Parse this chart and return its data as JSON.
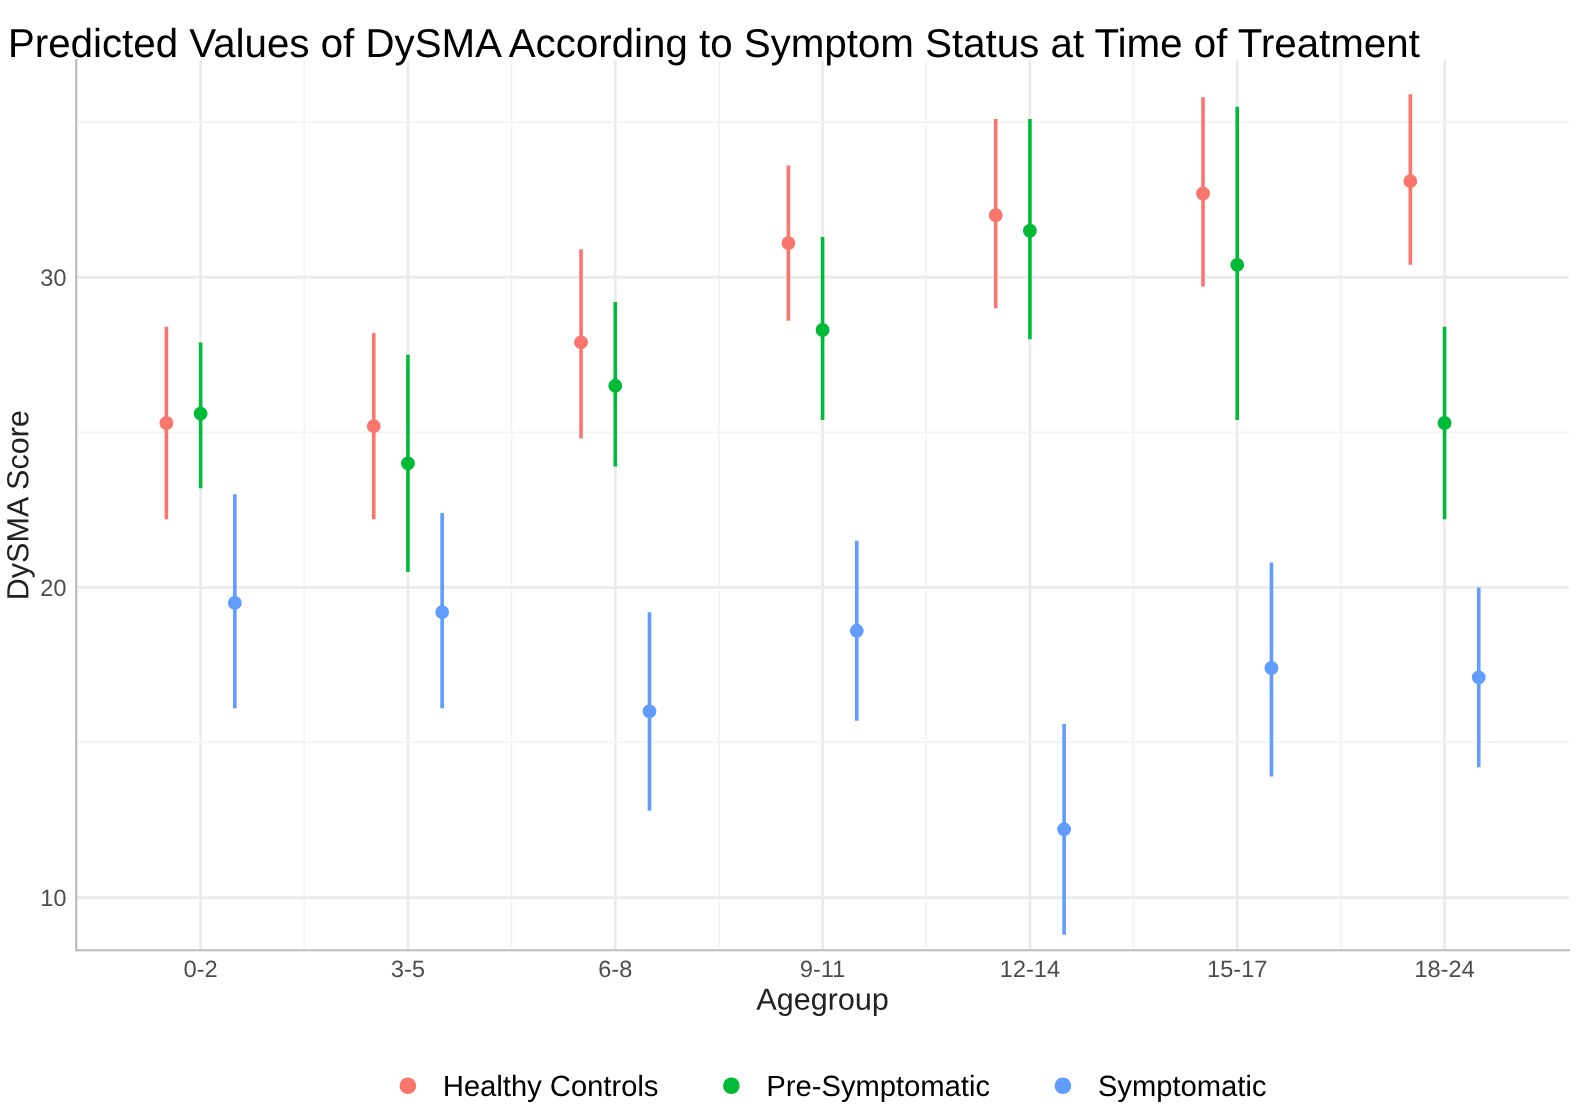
{
  "chart_data": {
    "type": "scatter",
    "title": "Predicted Values of DySMA According to Symptom Status at Time of Treatment",
    "xlabel": "Agegroup",
    "ylabel": "DySMA Score",
    "categories": [
      "0-2",
      "3-5",
      "6-8",
      "9-11",
      "12-14",
      "15-17",
      "18-24"
    ],
    "series": [
      {
        "name": "Healthy Controls",
        "color": "#f8766d",
        "values": [
          25.3,
          25.2,
          27.9,
          31.1,
          32.0,
          32.7,
          33.1
        ],
        "errors": [
          [
            22.2,
            28.4
          ],
          [
            22.2,
            28.2
          ],
          [
            24.8,
            30.9
          ],
          [
            28.6,
            33.6
          ],
          [
            29.0,
            35.1
          ],
          [
            29.7,
            35.8
          ],
          [
            30.4,
            35.9
          ]
        ]
      },
      {
        "name": "Pre-Symptomatic",
        "color": "#00ba38",
        "values": [
          25.6,
          24.0,
          26.5,
          28.3,
          31.5,
          30.4,
          25.3
        ],
        "errors": [
          [
            23.2,
            27.9
          ],
          [
            20.5,
            27.5
          ],
          [
            23.9,
            29.2
          ],
          [
            25.4,
            31.3
          ],
          [
            28.0,
            35.1
          ],
          [
            25.4,
            35.5
          ],
          [
            22.2,
            28.4
          ]
        ]
      },
      {
        "name": "Symptomatic",
        "color": "#619cff",
        "values": [
          19.5,
          19.2,
          16.0,
          18.6,
          12.2,
          17.4,
          17.1
        ],
        "errors": [
          [
            16.1,
            23.0
          ],
          [
            16.1,
            22.4
          ],
          [
            12.8,
            19.2
          ],
          [
            15.7,
            21.5
          ],
          [
            8.8,
            15.6
          ],
          [
            13.9,
            20.8
          ],
          [
            14.2,
            20.0
          ]
        ]
      }
    ],
    "ylim": [
      8.3,
      37.0
    ],
    "yticks": [
      10,
      20,
      30
    ],
    "grid": true,
    "legend": "bottom",
    "marker": "circle"
  }
}
